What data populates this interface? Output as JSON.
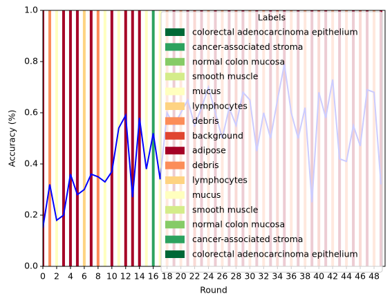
{
  "chart_data": {
    "type": "line",
    "xlabel": "Round",
    "ylabel": "Accuracy (%)",
    "x": [
      0,
      1,
      2,
      3,
      4,
      5,
      6,
      7,
      8,
      9,
      10,
      11,
      12,
      13,
      14,
      15,
      16,
      17,
      18,
      19,
      20,
      21,
      22,
      23,
      24,
      25,
      26,
      27,
      28,
      29,
      30,
      31,
      32,
      33,
      34,
      35,
      36,
      37,
      38,
      39,
      40,
      41,
      42,
      43,
      44,
      45,
      46,
      47,
      48,
      49
    ],
    "values": [
      0.15,
      0.32,
      0.18,
      0.2,
      0.36,
      0.28,
      0.3,
      0.36,
      0.35,
      0.33,
      0.37,
      0.54,
      0.59,
      0.27,
      0.58,
      0.38,
      0.52,
      0.34,
      0.6,
      0.55,
      0.6,
      0.65,
      0.55,
      0.62,
      0.7,
      0.6,
      0.5,
      0.62,
      0.55,
      0.68,
      0.65,
      0.45,
      0.6,
      0.5,
      0.65,
      0.79,
      0.6,
      0.5,
      0.62,
      0.25,
      0.68,
      0.58,
      0.73,
      0.42,
      0.41,
      0.55,
      0.47,
      0.69,
      0.68,
      0.32
    ],
    "color": "#0000ff",
    "round_labels": [
      "adipose",
      "debris",
      "mucus",
      "adipose",
      "adipose",
      "adipose",
      "lymphocytes",
      "adipose",
      "debris",
      "mucus",
      "adipose",
      "mucus",
      "adipose",
      "adipose",
      "adipose",
      "mucus",
      "cancer-associated stroma",
      "mucus",
      "debris",
      "adipose",
      "debris",
      "adipose",
      "background",
      "adipose",
      "debris",
      "adipose",
      "debris",
      "adipose",
      "background",
      "adipose",
      "debris",
      "adipose",
      "debris",
      "adipose",
      "background",
      "adipose",
      "debris",
      "adipose",
      "debris",
      "adipose",
      "background",
      "adipose",
      "debris",
      "adipose",
      "debris",
      "adipose",
      "background",
      "adipose",
      "debris",
      "adipose"
    ],
    "xlim": [
      0,
      49.6
    ],
    "ylim": [
      0,
      1
    ],
    "xticks": [
      0,
      2,
      4,
      6,
      8,
      10,
      12,
      14,
      16,
      18,
      20,
      22,
      24,
      26,
      28,
      30,
      32,
      34,
      36,
      38,
      40,
      42,
      44,
      46,
      48
    ],
    "yticks": [
      {
        "value": 0,
        "label": "0.0"
      },
      {
        "value": 0.2,
        "label": "0.2"
      },
      {
        "value": 0.4,
        "label": "0.4"
      },
      {
        "value": 0.6,
        "label": "0.6"
      },
      {
        "value": 0.8,
        "label": "0.8"
      },
      {
        "value": 1,
        "label": "1.0"
      }
    ],
    "legend_title": "Labels",
    "legend_corner": "upper right",
    "legend": [
      {
        "name": "colorectal adenocarcinoma epithelium",
        "color": "#006837"
      },
      {
        "name": "cancer-associated stroma",
        "color": "#2ca25f"
      },
      {
        "name": "normal colon mucosa",
        "color": "#86cb66"
      },
      {
        "name": "smooth muscle",
        "color": "#d4ec8a"
      },
      {
        "name": "mucus",
        "color": "#ffffbf"
      },
      {
        "name": "lymphocytes",
        "color": "#fed382"
      },
      {
        "name": "debris",
        "color": "#fc8d59"
      },
      {
        "name": "background",
        "color": "#e04530"
      },
      {
        "name": "adipose",
        "color": "#a50026"
      },
      {
        "name": "debris",
        "color": "#fc8d59"
      },
      {
        "name": "lymphocytes",
        "color": "#fed382"
      },
      {
        "name": "mucus",
        "color": "#ffffbf"
      },
      {
        "name": "smooth muscle",
        "color": "#d4ec8a"
      },
      {
        "name": "normal colon mucosa",
        "color": "#86cb66"
      },
      {
        "name": "cancer-associated stroma",
        "color": "#2ca25f"
      },
      {
        "name": "colorectal adenocarcinoma epithelium",
        "color": "#006837"
      }
    ]
  }
}
